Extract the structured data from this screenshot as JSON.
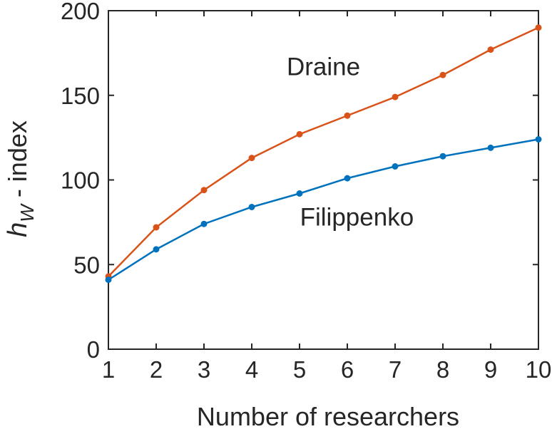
{
  "chart_data": {
    "type": "line",
    "xlabel": "Number of researchers",
    "ylabel": {
      "main": "h",
      "subscript": "W",
      "suffix": " - index"
    },
    "xlim": [
      1,
      10
    ],
    "ylim": [
      0,
      200
    ],
    "x_ticks": [
      1,
      2,
      3,
      4,
      5,
      6,
      7,
      8,
      9,
      10
    ],
    "y_ticks": [
      0,
      50,
      100,
      150,
      200
    ],
    "grid": false,
    "x": [
      1,
      2,
      3,
      4,
      5,
      6,
      7,
      8,
      9,
      10
    ],
    "series": [
      {
        "name": "Draine",
        "color": "#D95319",
        "values": [
          43,
          72,
          94,
          113,
          127,
          138,
          149,
          162,
          177,
          190
        ]
      },
      {
        "name": "Filippenko",
        "color": "#0072BD",
        "values": [
          41,
          59,
          74,
          84,
          92,
          101,
          108,
          114,
          119,
          124
        ]
      }
    ]
  }
}
